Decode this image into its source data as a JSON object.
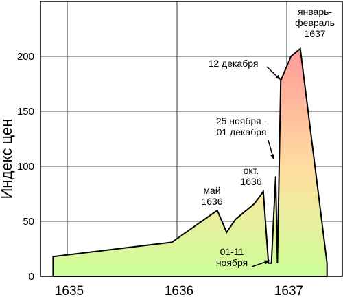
{
  "chart_data": {
    "type": "area",
    "ylabel": "Индекс цен",
    "xlabel": "",
    "ylim": [
      0,
      250
    ],
    "yticks": [
      0,
      50,
      100,
      150,
      200
    ],
    "xticks": [
      "1635",
      "1636",
      "1637"
    ],
    "grid": true,
    "x": [
      "1634-11",
      "1635-12",
      "1636-05",
      "1636-06",
      "1636-07",
      "1636-09",
      "1636-10",
      "1636-11-01",
      "1636-11-11",
      "1636-11-25",
      "1636-12-01",
      "1636-12-12",
      "1637-01",
      "1637-02",
      "1637-05"
    ],
    "values": [
      18,
      31,
      60,
      40,
      52,
      66,
      77,
      12,
      12,
      91,
      12,
      178,
      200,
      207,
      12
    ],
    "annotations": {
      "jan_feb": "январь-\nфевраль\n1637",
      "dec12": "12 декабря",
      "nov25": "25 ноября -\n01 декабря",
      "oct": "окт.\n1636",
      "may": "май\n1636",
      "nov01": "01-11\nноября"
    },
    "colors": {
      "low_fill": "#ccff99",
      "high_fill": "#ff9999",
      "mid_fill": "#ffd9a0",
      "line": "#000000"
    }
  }
}
